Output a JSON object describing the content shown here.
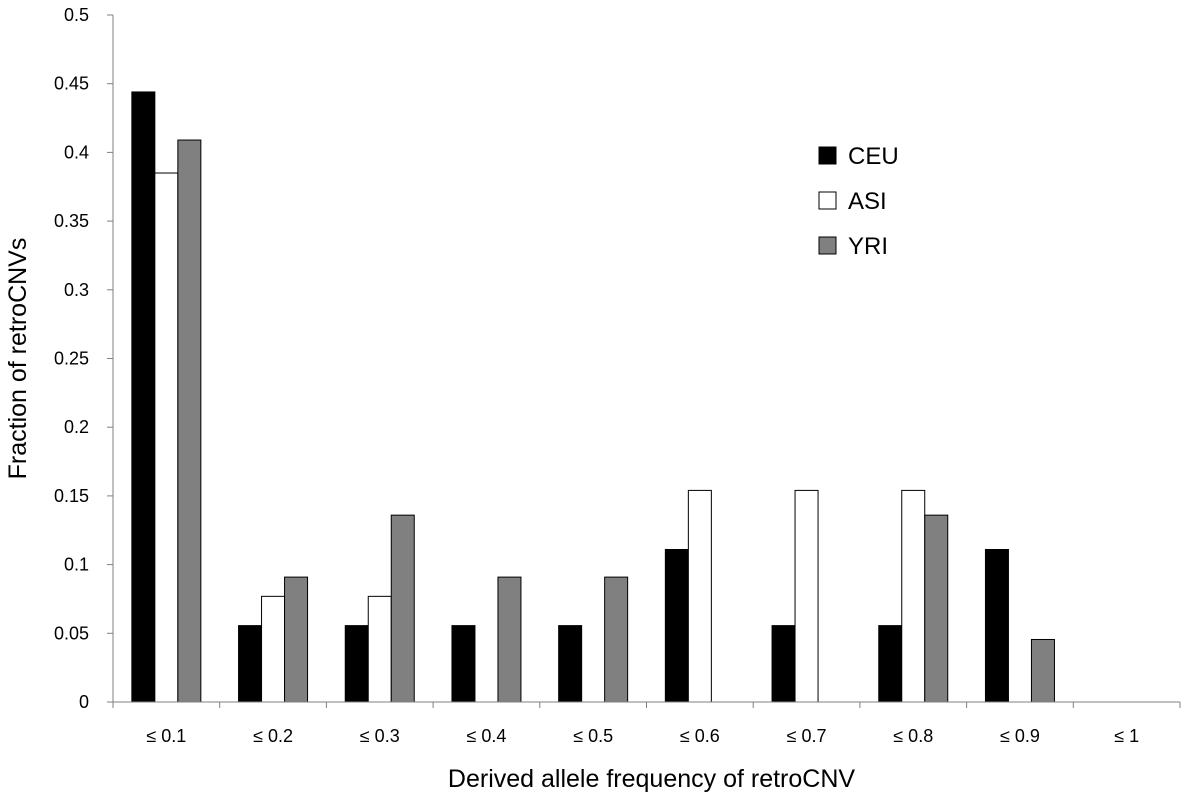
{
  "chart_data": {
    "type": "bar",
    "title": "",
    "xlabel": "Derived allele frequency of retroCNV",
    "ylabel": "Fraction of retroCNVs",
    "categories": [
      "≤ 0.1",
      "≤ 0.2",
      "≤ 0.3",
      "≤ 0.4",
      "≤ 0.5",
      "≤ 0.6",
      "≤ 0.7",
      "≤ 0.8",
      "≤ 0.9",
      "≤ 1"
    ],
    "ylim": [
      0,
      0.5
    ],
    "yticks": [
      0,
      0.05,
      0.1,
      0.15,
      0.2,
      0.25,
      0.3,
      0.35,
      0.4,
      0.45,
      0.5
    ],
    "ytick_labels": [
      "0",
      "0.05",
      "0.1",
      "0.15",
      "0.2",
      "0.25",
      "0.3",
      "0.35",
      "0.4",
      "0.45",
      "0.5"
    ],
    "grid": false,
    "legend_position": "top-right",
    "series": [
      {
        "name": "CEU",
        "color": "#000000",
        "values": [
          0.444,
          0.0556,
          0.0556,
          0.0556,
          0.0556,
          0.111,
          0.0556,
          0.0556,
          0.111,
          0
        ]
      },
      {
        "name": "ASI",
        "color": "#ffffff",
        "values": [
          0.385,
          0.0769,
          0.0769,
          0,
          0,
          0.154,
          0.154,
          0.154,
          0,
          0
        ]
      },
      {
        "name": "YRI",
        "color": "#808080",
        "values": [
          0.409,
          0.0909,
          0.136,
          0.0909,
          0.0909,
          0,
          0,
          0.136,
          0.0455,
          0
        ]
      }
    ]
  }
}
